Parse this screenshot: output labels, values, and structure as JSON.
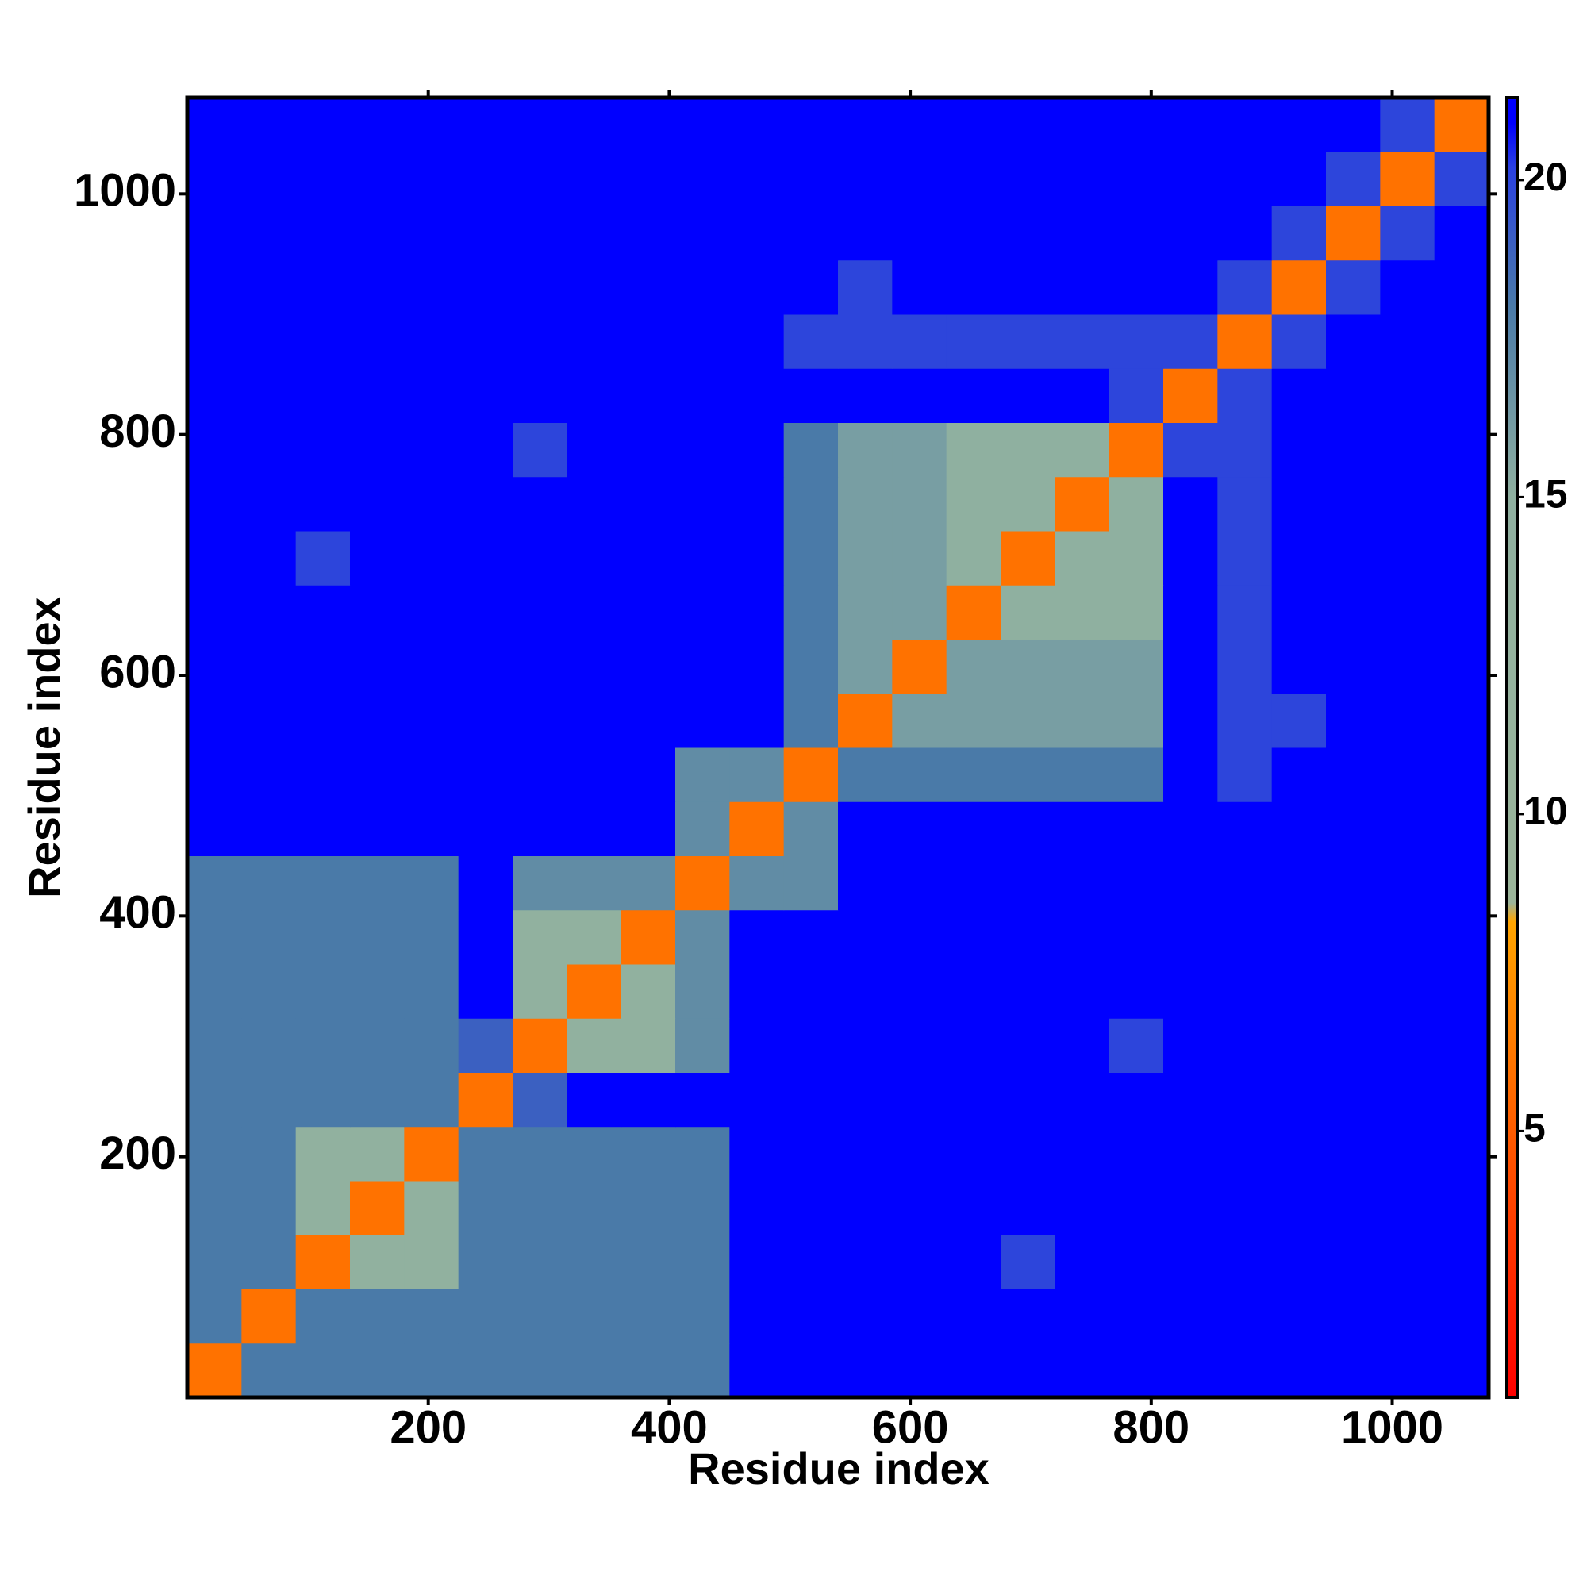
{
  "chart_data": {
    "type": "heatmap",
    "x_label": "Residue index",
    "y_label": "Residue index",
    "x_bins": [
      0,
      45,
      90,
      135,
      180,
      225,
      270,
      315,
      360,
      405,
      450,
      495,
      540,
      585,
      630,
      675,
      720,
      765,
      810,
      855,
      900,
      945,
      990,
      1035,
      1080
    ],
    "y_bins": [
      0,
      45,
      90,
      135,
      180,
      225,
      270,
      315,
      360,
      405,
      450,
      495,
      540,
      585,
      630,
      675,
      720,
      765,
      810,
      855,
      900,
      945,
      990,
      1035,
      1080
    ],
    "xlim": [
      0,
      1080
    ],
    "ylim": [
      0,
      1080
    ],
    "xticks": [
      200,
      400,
      600,
      800,
      1000
    ],
    "yticks": [
      200,
      400,
      600,
      800,
      1000
    ],
    "z": [
      [
        6,
        18,
        18,
        18,
        18,
        18,
        18,
        18,
        18,
        18,
        21,
        21,
        21,
        21,
        21,
        21,
        21,
        21,
        21,
        21,
        21,
        21,
        21,
        21
      ],
      [
        18,
        6,
        18,
        18,
        18,
        18,
        18,
        18,
        18,
        18,
        21,
        21,
        21,
        21,
        21,
        21,
        21,
        21,
        21,
        21,
        21,
        21,
        21,
        21
      ],
      [
        18,
        18,
        6,
        14,
        14,
        18,
        18,
        18,
        18,
        18,
        21,
        21,
        21,
        21,
        21,
        20,
        21,
        21,
        21,
        21,
        21,
        21,
        21,
        21
      ],
      [
        18,
        18,
        14,
        6,
        14,
        18,
        18,
        18,
        18,
        18,
        21,
        21,
        21,
        21,
        21,
        21,
        21,
        21,
        21,
        21,
        21,
        21,
        21,
        21
      ],
      [
        18,
        18,
        14,
        14,
        6,
        18,
        18,
        18,
        18,
        18,
        21,
        21,
        21,
        21,
        21,
        21,
        21,
        21,
        21,
        21,
        21,
        21,
        21,
        21
      ],
      [
        18,
        18,
        18,
        18,
        18,
        6,
        19,
        21,
        21,
        21,
        21,
        21,
        21,
        21,
        21,
        21,
        21,
        21,
        21,
        21,
        21,
        21,
        21,
        21
      ],
      [
        18,
        18,
        18,
        18,
        18,
        19,
        6,
        14,
        14,
        17,
        21,
        21,
        21,
        21,
        21,
        21,
        21,
        20,
        21,
        21,
        21,
        21,
        21,
        21
      ],
      [
        18,
        18,
        18,
        18,
        18,
        21,
        14,
        6,
        14,
        17,
        21,
        21,
        21,
        21,
        21,
        21,
        21,
        21,
        21,
        21,
        21,
        21,
        21,
        21
      ],
      [
        18,
        18,
        18,
        18,
        18,
        21,
        14,
        14,
        6,
        17,
        21,
        21,
        21,
        21,
        21,
        21,
        21,
        21,
        21,
        21,
        21,
        21,
        21,
        21
      ],
      [
        18,
        18,
        18,
        18,
        18,
        21,
        17,
        17,
        17,
        6,
        17,
        17,
        21,
        21,
        21,
        21,
        21,
        21,
        21,
        21,
        21,
        21,
        21,
        21
      ],
      [
        21,
        21,
        21,
        21,
        21,
        21,
        21,
        21,
        21,
        17,
        6,
        17,
        21,
        21,
        21,
        21,
        21,
        21,
        21,
        21,
        21,
        21,
        21,
        21
      ],
      [
        21,
        21,
        21,
        21,
        21,
        21,
        21,
        21,
        21,
        17,
        17,
        6,
        18,
        18,
        18,
        18,
        18,
        18,
        21,
        20,
        21,
        21,
        21,
        21
      ],
      [
        21,
        21,
        21,
        21,
        21,
        21,
        21,
        21,
        21,
        21,
        21,
        18,
        6,
        16,
        16,
        16,
        16,
        16,
        21,
        20,
        20,
        21,
        21,
        21
      ],
      [
        21,
        21,
        21,
        21,
        21,
        21,
        21,
        21,
        21,
        21,
        21,
        18,
        16,
        6,
        16,
        16,
        16,
        16,
        21,
        20,
        21,
        21,
        21,
        21
      ],
      [
        21,
        21,
        21,
        21,
        21,
        21,
        21,
        21,
        21,
        21,
        21,
        18,
        16,
        16,
        6,
        15,
        15,
        15,
        21,
        20,
        21,
        21,
        21,
        21
      ],
      [
        21,
        21,
        20,
        21,
        21,
        21,
        21,
        21,
        21,
        21,
        21,
        18,
        16,
        16,
        15,
        6,
        15,
        15,
        21,
        20,
        21,
        21,
        21,
        21
      ],
      [
        21,
        21,
        21,
        21,
        21,
        21,
        21,
        21,
        21,
        21,
        21,
        18,
        16,
        16,
        15,
        15,
        6,
        15,
        21,
        20,
        21,
        21,
        21,
        21
      ],
      [
        21,
        21,
        21,
        21,
        21,
        21,
        20,
        21,
        21,
        21,
        21,
        18,
        16,
        16,
        15,
        15,
        15,
        6,
        20,
        20,
        21,
        21,
        21,
        21
      ],
      [
        21,
        21,
        21,
        21,
        21,
        21,
        21,
        21,
        21,
        21,
        21,
        21,
        21,
        21,
        21,
        21,
        21,
        20,
        6,
        20,
        21,
        21,
        21,
        21
      ],
      [
        21,
        21,
        21,
        21,
        21,
        21,
        21,
        21,
        21,
        21,
        21,
        20,
        20,
        20,
        20,
        20,
        20,
        20,
        20,
        6,
        20,
        21,
        21,
        21
      ],
      [
        21,
        21,
        21,
        21,
        21,
        21,
        21,
        21,
        21,
        21,
        21,
        21,
        20,
        21,
        21,
        21,
        21,
        21,
        21,
        20,
        6,
        20,
        21,
        21
      ],
      [
        21,
        21,
        21,
        21,
        21,
        21,
        21,
        21,
        21,
        21,
        21,
        21,
        21,
        21,
        21,
        21,
        21,
        21,
        21,
        21,
        20,
        6,
        20,
        21
      ],
      [
        21,
        21,
        21,
        21,
        21,
        21,
        21,
        21,
        21,
        21,
        21,
        21,
        21,
        21,
        21,
        21,
        21,
        21,
        21,
        21,
        21,
        20,
        6,
        20
      ],
      [
        21,
        21,
        21,
        21,
        21,
        21,
        21,
        21,
        21,
        21,
        21,
        21,
        21,
        21,
        21,
        21,
        21,
        21,
        21,
        21,
        21,
        21,
        20,
        6
      ]
    ],
    "colorbar": {
      "lim": [
        0.8,
        21.3
      ],
      "ticks": [
        5,
        10,
        15,
        20
      ]
    },
    "colorscale": [
      [
        0.8,
        "#ff0000"
      ],
      [
        8.3,
        "#ffa500"
      ],
      [
        8.6,
        "#9bb59a"
      ],
      [
        15,
        "#8fb0a0"
      ],
      [
        18,
        "#4a7aa8"
      ],
      [
        20.2,
        "#2a40e0"
      ],
      [
        20.9,
        "#0000ff"
      ],
      [
        21.3,
        "#0000ff"
      ]
    ]
  }
}
